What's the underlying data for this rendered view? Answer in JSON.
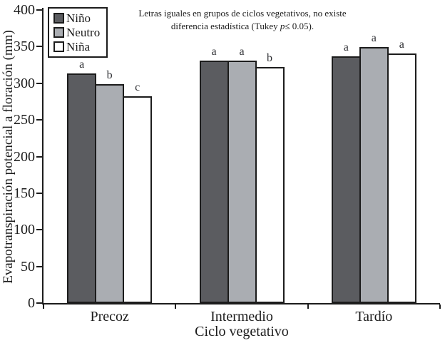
{
  "figure": {
    "annotation": {
      "line1": "Letras iguales en grupos de ciclos vegetativos, no existe",
      "line2_prefix": "diferencia estadística (Tukey ",
      "line2_italic": "p",
      "line2_suffix": "≤ 0.05)."
    },
    "colors": {
      "axis": "#1c1c1c",
      "background": "#ffffff"
    }
  },
  "chart_data": {
    "type": "bar",
    "title": "",
    "xlabel": "Ciclo vegetativo",
    "ylabel": "Evapotranspiración potencial a floración (mm)",
    "categories": [
      "Precoz",
      "Intermedio",
      "Tardío"
    ],
    "series": [
      {
        "name": "Niño",
        "color": "#5b5c60",
        "values": [
          313,
          331,
          337
        ],
        "letters": [
          "a",
          "a",
          "a"
        ]
      },
      {
        "name": "Neutro",
        "color": "#aaadb2",
        "values": [
          299,
          331,
          349
        ],
        "letters": [
          "b",
          "a",
          "a"
        ]
      },
      {
        "name": "Niña",
        "color": "#ffffff",
        "values": [
          282,
          322,
          341
        ],
        "letters": [
          "c",
          "b",
          "a"
        ]
      }
    ],
    "ylim": [
      0,
      400
    ],
    "yticks": [
      0,
      50,
      100,
      150,
      200,
      250,
      300,
      350,
      400
    ],
    "legend_position": "top-left",
    "grid": false,
    "significance_note": "Letras iguales en grupos de ciclos vegetativos, no existe diferencia estadística (Tukey p≤ 0.05)."
  }
}
